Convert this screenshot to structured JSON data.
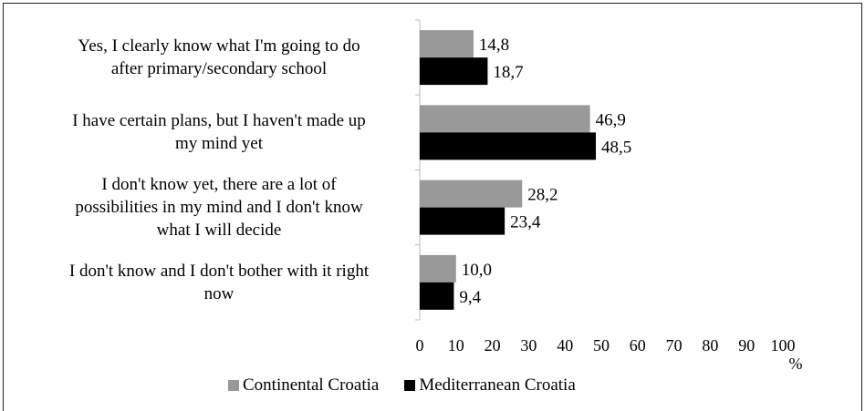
{
  "chart_data": {
    "type": "bar",
    "orientation": "horizontal",
    "categories": [
      "Yes, I clearly know what I'm going to do after primary/secondary school",
      "I have certain plans, but I haven't made up my mind yet",
      "I don't know yet, there are a lot of possibilities in my mind and I don't know what I will decide",
      "I don't know and I don't bother with it right now"
    ],
    "category_lines": [
      [
        "Yes, I clearly know what I'm going to do",
        "after primary/secondary school"
      ],
      [
        "I have certain plans, but I haven't made up",
        "my mind yet"
      ],
      [
        "I don't know yet, there are a lot of",
        "possibilities in my mind and I don't know",
        "what I will decide"
      ],
      [
        "I don't know and I don't bother with it right",
        "now"
      ]
    ],
    "series": [
      {
        "name": "Continental Croatia",
        "color": "#999999",
        "values": [
          14.8,
          46.9,
          28.2,
          10.0
        ],
        "labels": [
          "14,8",
          "46,9",
          "28,2",
          "10,0"
        ]
      },
      {
        "name": "Mediterranean Croatia",
        "color": "#000000",
        "values": [
          18.7,
          48.5,
          23.4,
          9.4
        ],
        "labels": [
          "18,7",
          "48,5",
          "23,4",
          "9,4"
        ]
      }
    ],
    "xlim": [
      0,
      100
    ],
    "xticks": [
      0,
      10,
      20,
      30,
      40,
      50,
      60,
      70,
      80,
      90,
      100
    ],
    "xunit": "%",
    "title": "",
    "ylabel": "",
    "grid": false,
    "legend_position": "bottom"
  }
}
